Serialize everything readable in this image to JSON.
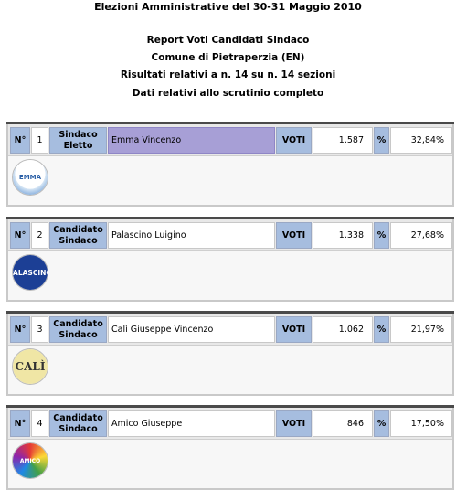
{
  "header": {
    "title": "Elezioni Amministrative del 30-31 Maggio 2010",
    "line1": "Report Voti Candidati Sindaco",
    "line2": "Comune di Pietraperzia (EN)",
    "line3": "Risultati relativi a n. 14 su n. 14 sezioni",
    "line4": "Dati relativi allo scrutinio completo"
  },
  "labels": {
    "no": "N°",
    "voti": "VOTI",
    "pct": "%"
  },
  "candidates": [
    {
      "num": "1",
      "role_line1": "Sindaco",
      "role_line2": "Eletto",
      "name": "Emma Vincenzo",
      "votes": "1.587",
      "percent": "32,84%",
      "logo_text": "EMMA"
    },
    {
      "num": "2",
      "role_line1": "Candidato",
      "role_line2": "Sindaco",
      "name": "Palascino Luigino",
      "votes": "1.338",
      "percent": "27,68%",
      "logo_text": "PALASCINO"
    },
    {
      "num": "3",
      "role_line1": "Candidato",
      "role_line2": "Sindaco",
      "name": "Calì Giuseppe Vincenzo",
      "votes": "1.062",
      "percent": "21,97%",
      "logo_text": "CALÌ"
    },
    {
      "num": "4",
      "role_line1": "Candidato",
      "role_line2": "Sindaco",
      "name": "Amico Giuseppe",
      "votes": "846",
      "percent": "17,50%",
      "logo_text": "AMICO"
    }
  ],
  "colors": {
    "header_cell": "#a6bddf",
    "winner_highlight": "#a79fd6"
  }
}
